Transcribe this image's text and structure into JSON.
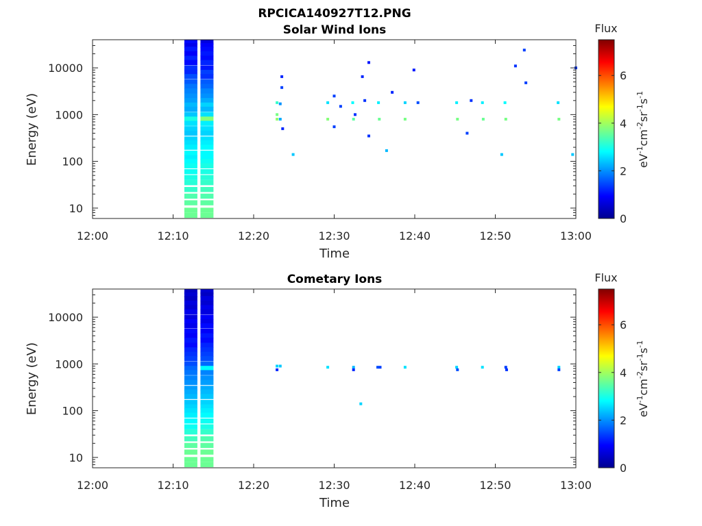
{
  "figure": {
    "title": "RPCICA140927T12.PNG"
  },
  "chart_data": [
    {
      "type": "heatmap",
      "title": "Solar Wind Ions",
      "xlabel": "Time",
      "ylabel": "Energy (eV)",
      "x_ticks": [
        "12:00",
        "12:10",
        "12:20",
        "12:30",
        "12:40",
        "12:50",
        "13:00"
      ],
      "x_range_minutes": [
        0,
        60
      ],
      "y_scale": "log",
      "y_ticks": [
        "10",
        "100",
        "1000",
        "10000"
      ],
      "y_range": [
        6,
        40000
      ],
      "colorbar": {
        "title": "Flux",
        "label": "eV-1cm-2sr-1s-1",
        "ticks": [
          "0",
          "2",
          "4",
          "6"
        ],
        "range": [
          0,
          7.5
        ],
        "colormap": "jet"
      },
      "cells": [
        [
          12.2,
          35000,
          1.0
        ],
        [
          12.2,
          30000,
          0.8
        ],
        [
          12.2,
          25000,
          1.1
        ],
        [
          12.2,
          20000,
          0.9
        ],
        [
          12.2,
          16000,
          1.2
        ],
        [
          12.2,
          13000,
          1.0
        ],
        [
          12.2,
          10000,
          1.3
        ],
        [
          12.2,
          8000,
          1.2
        ],
        [
          12.2,
          6500,
          1.5
        ],
        [
          12.2,
          5000,
          1.6
        ],
        [
          12.2,
          4000,
          1.8
        ],
        [
          12.2,
          3200,
          1.9
        ],
        [
          12.2,
          2500,
          2.0
        ],
        [
          12.2,
          2000,
          2.1
        ],
        [
          12.2,
          1600,
          2.3
        ],
        [
          12.2,
          1300,
          2.2
        ],
        [
          12.2,
          1000,
          2.4
        ],
        [
          12.2,
          800,
          3.0
        ],
        [
          12.2,
          650,
          2.6
        ],
        [
          12.2,
          500,
          2.5
        ],
        [
          12.2,
          400,
          2.4
        ],
        [
          12.2,
          300,
          2.5
        ],
        [
          12.2,
          250,
          2.6
        ],
        [
          12.2,
          200,
          2.7
        ],
        [
          12.2,
          150,
          2.8
        ],
        [
          12.2,
          120,
          2.7
        ],
        [
          12.2,
          100,
          2.8
        ],
        [
          12.2,
          80,
          2.9
        ],
        [
          12.2,
          60,
          2.9
        ],
        [
          12.2,
          45,
          3.0
        ],
        [
          12.2,
          35,
          3.1
        ],
        [
          12.2,
          25,
          3.2
        ],
        [
          12.2,
          18,
          3.4
        ],
        [
          12.2,
          13,
          3.5
        ],
        [
          12.2,
          9,
          3.6
        ],
        [
          12.2,
          7,
          3.6
        ],
        [
          14.2,
          35000,
          0.7
        ],
        [
          14.2,
          30000,
          0.9
        ],
        [
          14.2,
          25000,
          1.0
        ],
        [
          14.2,
          20000,
          1.1
        ],
        [
          14.2,
          16000,
          1.0
        ],
        [
          14.2,
          13000,
          1.2
        ],
        [
          14.2,
          10000,
          1.1
        ],
        [
          14.2,
          8000,
          1.4
        ],
        [
          14.2,
          6500,
          1.3
        ],
        [
          14.2,
          5000,
          1.6
        ],
        [
          14.2,
          4000,
          1.7
        ],
        [
          14.2,
          3200,
          1.9
        ],
        [
          14.2,
          2500,
          2.0
        ],
        [
          14.2,
          2000,
          2.2
        ],
        [
          14.2,
          1600,
          2.5
        ],
        [
          14.2,
          1300,
          2.3
        ],
        [
          14.2,
          1000,
          2.6
        ],
        [
          14.2,
          800,
          3.8
        ],
        [
          14.2,
          650,
          2.7
        ],
        [
          14.2,
          500,
          2.6
        ],
        [
          14.2,
          400,
          2.5
        ],
        [
          14.2,
          300,
          2.6
        ],
        [
          14.2,
          250,
          2.7
        ],
        [
          14.2,
          200,
          2.8
        ],
        [
          14.2,
          150,
          2.8
        ],
        [
          14.2,
          120,
          2.8
        ],
        [
          14.2,
          100,
          2.9
        ],
        [
          14.2,
          80,
          3.0
        ],
        [
          14.2,
          60,
          3.0
        ],
        [
          14.2,
          45,
          3.1
        ],
        [
          14.2,
          35,
          3.2
        ],
        [
          14.2,
          25,
          3.3
        ],
        [
          14.2,
          18,
          3.4
        ],
        [
          14.2,
          13,
          3.5
        ],
        [
          14.2,
          9,
          3.6
        ],
        [
          14.2,
          7,
          3.6
        ],
        [
          22.9,
          1800,
          3.2
        ],
        [
          22.9,
          1000,
          3.7
        ],
        [
          22.9,
          800,
          3.9
        ],
        [
          23.3,
          1700,
          2.0
        ],
        [
          23.3,
          800,
          2.2
        ],
        [
          23.5,
          6500,
          1.2
        ],
        [
          23.5,
          3800,
          1.4
        ],
        [
          23.6,
          500,
          1.2
        ],
        [
          24.9,
          140,
          2.4
        ],
        [
          29.2,
          1800,
          2.6
        ],
        [
          29.2,
          800,
          3.8
        ],
        [
          30.0,
          550,
          1.4
        ],
        [
          30.0,
          2500,
          1.4
        ],
        [
          30.8,
          1500,
          1.4
        ],
        [
          32.3,
          1800,
          2.8
        ],
        [
          32.4,
          800,
          3.5
        ],
        [
          32.6,
          1000,
          1.3
        ],
        [
          33.5,
          6500,
          1.2
        ],
        [
          33.8,
          2000,
          1.3
        ],
        [
          34.3,
          13000,
          1.1
        ],
        [
          34.3,
          350,
          1.3
        ],
        [
          35.5,
          1800,
          2.7
        ],
        [
          35.6,
          800,
          3.6
        ],
        [
          36.5,
          170,
          2.3
        ],
        [
          37.2,
          3000,
          1.2
        ],
        [
          38.8,
          1800,
          2.5
        ],
        [
          38.8,
          800,
          3.7
        ],
        [
          39.9,
          9000,
          1.1
        ],
        [
          40.4,
          1800,
          1.5
        ],
        [
          45.2,
          1800,
          2.7
        ],
        [
          45.3,
          800,
          3.7
        ],
        [
          46.5,
          400,
          1.4
        ],
        [
          47.0,
          2000,
          1.3
        ],
        [
          48.4,
          1800,
          2.7
        ],
        [
          48.5,
          800,
          3.6
        ],
        [
          50.8,
          140,
          2.4
        ],
        [
          51.2,
          1800,
          2.8
        ],
        [
          51.3,
          800,
          3.7
        ],
        [
          52.5,
          11000,
          1.3
        ],
        [
          53.6,
          24000,
          1.4
        ],
        [
          53.8,
          4800,
          1.4
        ],
        [
          57.8,
          1800,
          2.6
        ],
        [
          57.9,
          800,
          3.7
        ],
        [
          59.6,
          140,
          2.4
        ],
        [
          60.0,
          10000,
          1.3
        ]
      ]
    },
    {
      "type": "heatmap",
      "title": "Cometary Ions",
      "xlabel": "Time",
      "ylabel": "Energy (eV)",
      "x_ticks": [
        "12:00",
        "12:10",
        "12:20",
        "12:30",
        "12:40",
        "12:50",
        "13:00"
      ],
      "x_range_minutes": [
        0,
        60
      ],
      "y_scale": "log",
      "y_ticks": [
        "10",
        "100",
        "1000",
        "10000"
      ],
      "y_range": [
        6,
        40000
      ],
      "colorbar": {
        "title": "Flux",
        "label": "eV-1cm-2sr-1s-1",
        "ticks": [
          "0",
          "2",
          "4",
          "6"
        ],
        "range": [
          0,
          7.5
        ],
        "colormap": "jet"
      },
      "cells": [
        [
          12.2,
          35000,
          0.5
        ],
        [
          12.2,
          30000,
          0.6
        ],
        [
          12.2,
          25000,
          0.5
        ],
        [
          12.2,
          20000,
          0.7
        ],
        [
          12.2,
          16000,
          0.6
        ],
        [
          12.2,
          13000,
          0.8
        ],
        [
          12.2,
          10000,
          0.7
        ],
        [
          12.2,
          8000,
          0.9
        ],
        [
          12.2,
          6500,
          0.8
        ],
        [
          12.2,
          5000,
          1.0
        ],
        [
          12.2,
          4000,
          0.9
        ],
        [
          12.2,
          3200,
          1.1
        ],
        [
          12.2,
          2500,
          1.0
        ],
        [
          12.2,
          2000,
          1.2
        ],
        [
          12.2,
          1600,
          1.3
        ],
        [
          12.2,
          1300,
          1.4
        ],
        [
          12.2,
          1000,
          1.5
        ],
        [
          12.2,
          800,
          1.7
        ],
        [
          12.2,
          650,
          1.8
        ],
        [
          12.2,
          500,
          1.9
        ],
        [
          12.2,
          400,
          2.0
        ],
        [
          12.2,
          300,
          2.1
        ],
        [
          12.2,
          250,
          2.2
        ],
        [
          12.2,
          200,
          2.3
        ],
        [
          12.2,
          150,
          2.4
        ],
        [
          12.2,
          120,
          2.5
        ],
        [
          12.2,
          100,
          2.6
        ],
        [
          12.2,
          80,
          2.7
        ],
        [
          12.2,
          60,
          2.8
        ],
        [
          12.2,
          45,
          2.9
        ],
        [
          12.2,
          35,
          3.1
        ],
        [
          12.2,
          25,
          3.3
        ],
        [
          12.2,
          18,
          3.5
        ],
        [
          12.2,
          13,
          3.6
        ],
        [
          12.2,
          9,
          3.6
        ],
        [
          12.2,
          7,
          3.6
        ],
        [
          14.2,
          35000,
          0.6
        ],
        [
          14.2,
          30000,
          0.5
        ],
        [
          14.2,
          25000,
          0.7
        ],
        [
          14.2,
          20000,
          0.6
        ],
        [
          14.2,
          16000,
          0.8
        ],
        [
          14.2,
          13000,
          0.7
        ],
        [
          14.2,
          10000,
          0.9
        ],
        [
          14.2,
          8000,
          0.8
        ],
        [
          14.2,
          6500,
          1.0
        ],
        [
          14.2,
          5000,
          0.9
        ],
        [
          14.2,
          4000,
          1.1
        ],
        [
          14.2,
          3200,
          1.0
        ],
        [
          14.2,
          2500,
          1.2
        ],
        [
          14.2,
          2000,
          1.3
        ],
        [
          14.2,
          1600,
          1.4
        ],
        [
          14.2,
          1300,
          1.5
        ],
        [
          14.2,
          1000,
          1.7
        ],
        [
          14.2,
          800,
          2.8
        ],
        [
          14.2,
          650,
          1.9
        ],
        [
          14.2,
          500,
          2.0
        ],
        [
          14.2,
          400,
          2.1
        ],
        [
          14.2,
          300,
          2.2
        ],
        [
          14.2,
          250,
          2.3
        ],
        [
          14.2,
          200,
          2.4
        ],
        [
          14.2,
          150,
          2.5
        ],
        [
          14.2,
          120,
          2.6
        ],
        [
          14.2,
          100,
          2.7
        ],
        [
          14.2,
          80,
          2.8
        ],
        [
          14.2,
          60,
          2.9
        ],
        [
          14.2,
          45,
          3.0
        ],
        [
          14.2,
          35,
          3.2
        ],
        [
          14.2,
          25,
          3.4
        ],
        [
          14.2,
          18,
          3.5
        ],
        [
          14.2,
          13,
          3.6
        ],
        [
          14.2,
          9,
          3.6
        ],
        [
          14.2,
          7,
          3.6
        ],
        [
          22.9,
          900,
          2.5
        ],
        [
          23.3,
          900,
          2.4
        ],
        [
          22.9,
          750,
          1.2
        ],
        [
          29.2,
          850,
          2.6
        ],
        [
          32.4,
          850,
          2.3
        ],
        [
          32.4,
          750,
          1.2
        ],
        [
          33.3,
          140,
          2.5
        ],
        [
          35.4,
          850,
          1.5
        ],
        [
          35.7,
          850,
          1.4
        ],
        [
          38.8,
          850,
          2.6
        ],
        [
          45.2,
          850,
          2.5
        ],
        [
          45.3,
          750,
          1.5
        ],
        [
          48.4,
          850,
          2.6
        ],
        [
          51.3,
          850,
          1.4
        ],
        [
          51.4,
          750,
          1.3
        ],
        [
          57.9,
          850,
          2.5
        ],
        [
          57.9,
          750,
          1.4
        ]
      ]
    }
  ]
}
